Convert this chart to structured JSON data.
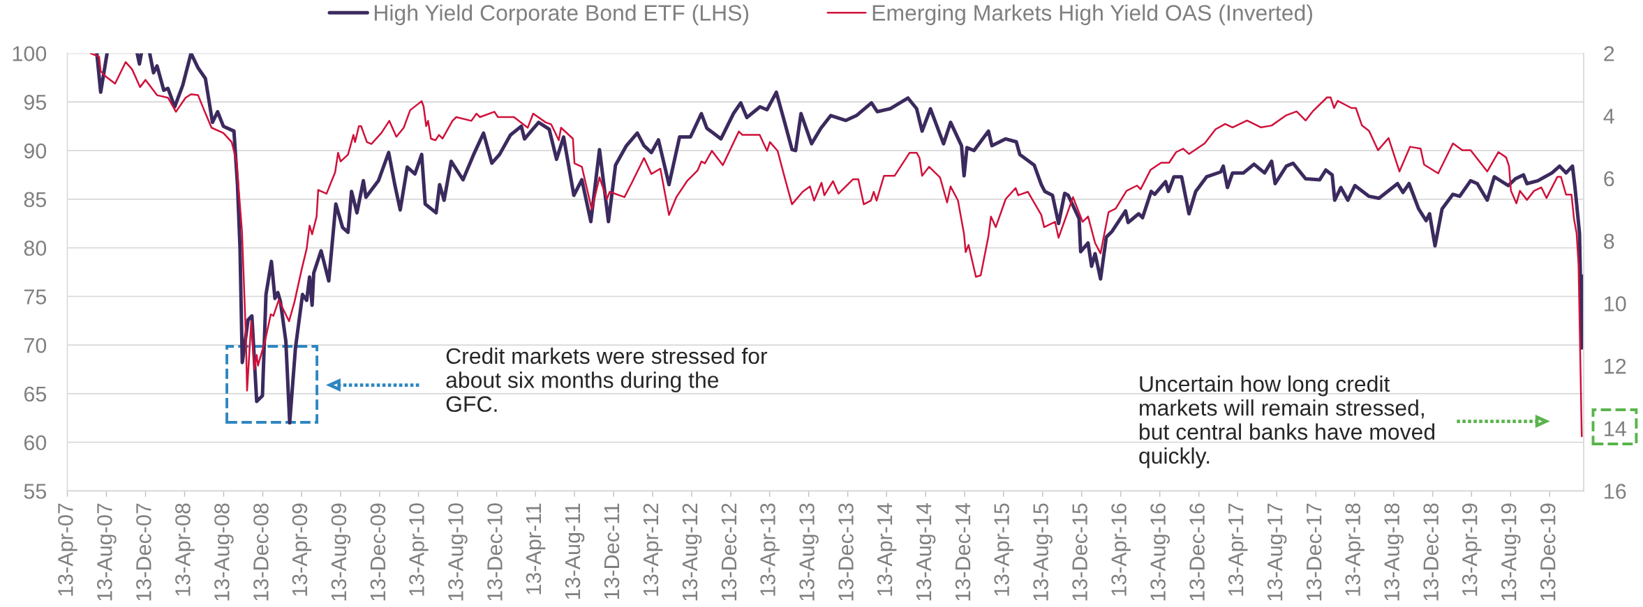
{
  "chart_data": {
    "type": "line",
    "legend": "top",
    "grid": "y",
    "xlim": [
      "2007-04-13",
      "2020-03-28"
    ],
    "xticks": [
      {
        "value": "2007-04-13",
        "label": "13-Apr-07"
      },
      {
        "value": "2007-08-13",
        "label": "13-Aug-07"
      },
      {
        "value": "2007-12-13",
        "label": "13-Dec-07"
      },
      {
        "value": "2008-04-13",
        "label": "13-Apr-08"
      },
      {
        "value": "2008-08-13",
        "label": "13-Aug-08"
      },
      {
        "value": "2008-12-13",
        "label": "13-Dec-08"
      },
      {
        "value": "2009-04-13",
        "label": "13-Apr-09"
      },
      {
        "value": "2009-08-13",
        "label": "13-Aug-09"
      },
      {
        "value": "2009-12-13",
        "label": "13-Dec-09"
      },
      {
        "value": "2010-04-13",
        "label": "13-Apr-10"
      },
      {
        "value": "2010-08-13",
        "label": "13-Aug-10"
      },
      {
        "value": "2010-12-13",
        "label": "13-Dec-10"
      },
      {
        "value": "2011-04-13",
        "label": "13-Apr-11"
      },
      {
        "value": "2011-08-13",
        "label": "13-Aug-11"
      },
      {
        "value": "2011-12-13",
        "label": "13-Dec-11"
      },
      {
        "value": "2012-04-13",
        "label": "13-Apr-12"
      },
      {
        "value": "2012-08-13",
        "label": "13-Aug-12"
      },
      {
        "value": "2012-12-13",
        "label": "13-Dec-12"
      },
      {
        "value": "2013-04-13",
        "label": "13-Apr-13"
      },
      {
        "value": "2013-08-13",
        "label": "13-Aug-13"
      },
      {
        "value": "2013-12-13",
        "label": "13-Dec-13"
      },
      {
        "value": "2014-04-13",
        "label": "13-Apr-14"
      },
      {
        "value": "2014-08-13",
        "label": "13-Aug-14"
      },
      {
        "value": "2014-12-13",
        "label": "13-Dec-14"
      },
      {
        "value": "2015-04-13",
        "label": "13-Apr-15"
      },
      {
        "value": "2015-08-13",
        "label": "13-Aug-15"
      },
      {
        "value": "2015-12-13",
        "label": "13-Dec-15"
      },
      {
        "value": "2016-04-13",
        "label": "13-Apr-16"
      },
      {
        "value": "2016-08-13",
        "label": "13-Aug-16"
      },
      {
        "value": "2016-12-13",
        "label": "13-Dec-16"
      },
      {
        "value": "2017-04-13",
        "label": "13-Apr-17"
      },
      {
        "value": "2017-08-13",
        "label": "13-Aug-17"
      },
      {
        "value": "2017-12-13",
        "label": "13-Dec-17"
      },
      {
        "value": "2018-04-13",
        "label": "13-Apr-18"
      },
      {
        "value": "2018-08-13",
        "label": "13-Aug-18"
      },
      {
        "value": "2018-12-13",
        "label": "13-Dec-18"
      },
      {
        "value": "2019-04-13",
        "label": "13-Apr-19"
      },
      {
        "value": "2019-08-13",
        "label": "13-Aug-19"
      },
      {
        "value": "2019-12-13",
        "label": "13-Dec-19"
      }
    ],
    "ylim": [
      55,
      100
    ],
    "yticks": [
      55,
      60,
      65,
      70,
      75,
      80,
      85,
      90,
      95,
      100
    ],
    "y2lim": [
      16,
      2
    ],
    "y2ticks": [
      2,
      4,
      6,
      8,
      10,
      12,
      14,
      16
    ],
    "series": [
      {
        "name": "High Yield Corporate Bond ETF (LHS)",
        "color": "#3b2a5e",
        "x": [
          "2007-07-14",
          "2007-07-26",
          "2007-08-15",
          "2007-10-01",
          "2007-11-17",
          "2007-11-24",
          "2007-11-30",
          "2007-12-10",
          "2007-12-26",
          "2008-01-07",
          "2008-01-18",
          "2008-02-08",
          "2008-02-21",
          "2008-03-13",
          "2008-04-07",
          "2008-05-03",
          "2008-05-25",
          "2008-06-17",
          "2008-07-09",
          "2008-07-25",
          "2008-08-12",
          "2008-09-14",
          "2008-09-25",
          "2008-10-03",
          "2008-10-10",
          "2008-10-28",
          "2008-11-09",
          "2008-11-24",
          "2008-12-12",
          "2008-12-23",
          "2009-01-09",
          "2009-01-20",
          "2009-01-29",
          "2009-02-06",
          "2009-02-23",
          "2009-03-07",
          "2009-03-25",
          "2009-04-16",
          "2009-04-29",
          "2009-05-08",
          "2009-05-16",
          "2009-05-21",
          "2009-06-13",
          "2009-07-07",
          "2009-07-29",
          "2009-08-19",
          "2009-09-05",
          "2009-09-16",
          "2009-10-03",
          "2009-10-23",
          "2009-10-31",
          "2009-12-09",
          "2010-01-10",
          "2010-01-29",
          "2010-02-15",
          "2010-03-09",
          "2010-04-02",
          "2010-04-23",
          "2010-05-04",
          "2010-06-07",
          "2010-06-18",
          "2010-07-02",
          "2010-07-24",
          "2010-08-30",
          "2010-10-05",
          "2010-11-02",
          "2010-11-28",
          "2010-12-22",
          "2011-01-25",
          "2011-02-28",
          "2011-03-10",
          "2011-04-23",
          "2011-05-26",
          "2011-06-18",
          "2011-07-10",
          "2011-08-11",
          "2011-09-05",
          "2011-10-03",
          "2011-10-30",
          "2011-11-27",
          "2011-12-19",
          "2012-01-22",
          "2012-02-25",
          "2012-03-17",
          "2012-04-09",
          "2012-05-01",
          "2012-06-03",
          "2012-07-06",
          "2012-08-09",
          "2012-09-12",
          "2012-09-29",
          "2012-11-12",
          "2012-12-21",
          "2013-01-13",
          "2013-02-01",
          "2013-03-14",
          "2013-04-05",
          "2013-05-04",
          "2013-05-30",
          "2013-06-22",
          "2013-07-03",
          "2013-07-20",
          "2013-08-22",
          "2013-09-20",
          "2013-10-21",
          "2013-12-07",
          "2014-01-09",
          "2014-02-25",
          "2014-03-15",
          "2014-04-24",
          "2014-06-19",
          "2014-07-16",
          "2014-08-02",
          "2014-08-28",
          "2014-10-08",
          "2014-10-30",
          "2014-12-03",
          "2014-12-11",
          "2014-12-20",
          "2015-01-11",
          "2015-02-25",
          "2015-03-08",
          "2015-04-20",
          "2015-05-23",
          "2015-06-03",
          "2015-07-18",
          "2015-08-09",
          "2015-08-20",
          "2015-09-13",
          "2015-10-02",
          "2015-10-21",
          "2015-11-01",
          "2015-12-05",
          "2015-12-10",
          "2016-01-02",
          "2016-01-13",
          "2016-01-24",
          "2016-02-10",
          "2016-02-28",
          "2016-03-17",
          "2016-04-28",
          "2016-05-06",
          "2016-06-08",
          "2016-06-20",
          "2016-07-17",
          "2016-07-28",
          "2016-08-31",
          "2016-09-09",
          "2016-09-26",
          "2016-10-20",
          "2016-11-12",
          "2016-12-03",
          "2017-01-06",
          "2017-02-19",
          "2017-02-27",
          "2017-03-12",
          "2017-03-28",
          "2017-05-01",
          "2017-06-03",
          "2017-07-06",
          "2017-07-28",
          "2017-08-08",
          "2017-09-12",
          "2017-10-03",
          "2017-11-11",
          "2017-12-25",
          "2018-01-13",
          "2018-02-02",
          "2018-02-10",
          "2018-03-01",
          "2018-03-23",
          "2018-04-14",
          "2018-05-28",
          "2018-06-28",
          "2018-08-25",
          "2018-09-11",
          "2018-09-30",
          "2018-10-30",
          "2018-11-22",
          "2018-12-03",
          "2018-12-20",
          "2019-01-11",
          "2019-02-14",
          "2019-03-07",
          "2019-04-10",
          "2019-05-01",
          "2019-06-01",
          "2019-06-23",
          "2019-08-06",
          "2019-08-28",
          "2019-09-22",
          "2019-10-03",
          "2019-11-06",
          "2019-12-20",
          "2020-01-13",
          "2020-02-02",
          "2020-02-22",
          "2020-03-01",
          "2020-03-15",
          "2020-03-22",
          "2020-03-27"
        ],
        "values": [
          100,
          96.0,
          100,
          null,
          100,
          98.9,
          100,
          null,
          100,
          98.0,
          98.7,
          96.2,
          96.4,
          94.5,
          96.7,
          100,
          98.5,
          97.4,
          92.9,
          94.0,
          92.5,
          92.0,
          86.5,
          79.9,
          68.2,
          72.6,
          73.0,
          64.2,
          64.8,
          75.2,
          78.6,
          74.8,
          75.4,
          74.5,
          70.4,
          62.0,
          69.7,
          75.2,
          74.6,
          77.0,
          74.1,
          77.4,
          79.7,
          76.6,
          84.5,
          82.1,
          81.6,
          85.8,
          83.6,
          86.9,
          85.2,
          86.9,
          89.8,
          86.5,
          83.9,
          88.3,
          87.6,
          89.6,
          84.5,
          83.6,
          86.5,
          84.9,
          88.9,
          87.0,
          89.8,
          91.8,
          88.7,
          89.6,
          91.6,
          92.5,
          91.2,
          92.9,
          92.2,
          89.1,
          91.4,
          85.4,
          87.0,
          82.7,
          90.1,
          82.7,
          88.5,
          90.5,
          91.8,
          90.5,
          89.8,
          91.1,
          86.5,
          91.4,
          91.4,
          93.8,
          92.3,
          91.2,
          93.8,
          94.9,
          93.4,
          94.5,
          94.2,
          96.0,
          92.9,
          90.1,
          90.0,
          93.8,
          90.7,
          92.3,
          93.6,
          93.1,
          93.6,
          94.9,
          94.0,
          94.3,
          95.4,
          94.3,
          92.0,
          94.3,
          90.7,
          92.9,
          90.5,
          87.4,
          90.3,
          90.0,
          92.0,
          90.5,
          91.2,
          90.9,
          89.6,
          88.5,
          86.5,
          85.8,
          85.4,
          82.5,
          85.6,
          85.4,
          83.0,
          79.6,
          80.5,
          78.1,
          79.4,
          76.8,
          81.1,
          81.7,
          83.8,
          82.6,
          83.5,
          83.1,
          85.8,
          85.5,
          86.8,
          85.8,
          87.3,
          87.3,
          83.5,
          85.8,
          87.3,
          87.8,
          88.4,
          86.2,
          87.7,
          87.7,
          88.6,
          87.7,
          88.9,
          86.6,
          88.4,
          88.7,
          87.1,
          87.0,
          88.0,
          87.5,
          84.9,
          86.2,
          84.9,
          86.4,
          85.3,
          85.1,
          86.6,
          85.7,
          86.6,
          84.0,
          82.8,
          83.5,
          80.2,
          84.0,
          85.5,
          85.3,
          86.9,
          86.6,
          84.9,
          87.3,
          86.4,
          87.1,
          87.5,
          86.6,
          86.9,
          87.7,
          88.4,
          87.7,
          88.4,
          86.2,
          81.5,
          69.7,
          77.1
        ]
      },
      {
        "name": "Emerging Markets High Yield OAS (Inverted)",
        "color": "#d0103a",
        "axis": "y2",
        "x": [
          "2007-06-25",
          "2007-07-21",
          "2007-07-26",
          "2007-08-11",
          "2007-09-09",
          "2007-10-12",
          "2007-11-01",
          "2007-11-26",
          "2007-12-13",
          "2008-01-18",
          "2008-02-21",
          "2008-03-17",
          "2008-04-16",
          "2008-05-03",
          "2008-05-25",
          "2008-06-13",
          "2008-07-06",
          "2008-08-12",
          "2008-09-07",
          "2008-09-22",
          "2008-10-09",
          "2008-10-21",
          "2008-10-25",
          "2008-11-07",
          "2008-11-17",
          "2008-11-24",
          "2008-11-28",
          "2008-12-20",
          "2009-01-07",
          "2009-01-15",
          "2009-02-01",
          "2009-03-05",
          "2009-03-22",
          "2009-04-13",
          "2009-04-29",
          "2009-05-08",
          "2009-05-16",
          "2009-05-30",
          "2009-06-04",
          "2009-06-30",
          "2009-07-27",
          "2009-08-05",
          "2009-08-13",
          "2009-09-05",
          "2009-09-22",
          "2009-09-27",
          "2009-10-09",
          "2009-10-16",
          "2009-11-03",
          "2009-11-17",
          "2009-12-18",
          "2010-01-12",
          "2010-02-03",
          "2010-02-26",
          "2010-03-18",
          "2010-04-23",
          "2010-04-29",
          "2010-05-07",
          "2010-05-13",
          "2010-05-22",
          "2010-06-05",
          "2010-06-16",
          "2010-06-27",
          "2010-07-28",
          "2010-08-09",
          "2010-09-25",
          "2010-10-11",
          "2010-10-22",
          "2010-12-06",
          "2010-12-17",
          "2011-02-05",
          "2011-03-20",
          "2011-04-06",
          "2011-05-15",
          "2011-06-01",
          "2011-06-25",
          "2011-07-02",
          "2011-08-08",
          "2011-08-13",
          "2011-09-05",
          "2011-10-06",
          "2011-10-30",
          "2011-11-22",
          "2011-12-01",
          "2012-01-16",
          "2012-02-08",
          "2012-03-17",
          "2012-04-09",
          "2012-05-07",
          "2012-06-03",
          "2012-06-26",
          "2012-07-29",
          "2012-08-31",
          "2012-09-12",
          "2012-09-23",
          "2012-10-15",
          "2012-11-18",
          "2013-01-07",
          "2013-01-18",
          "2013-03-13",
          "2013-04-05",
          "2013-04-14",
          "2013-05-08",
          "2013-05-30",
          "2013-06-22",
          "2013-07-25",
          "2013-08-17",
          "2013-08-30",
          "2013-09-22",
          "2013-10-01",
          "2013-10-28",
          "2013-11-14",
          "2013-12-29",
          "2014-01-15",
          "2014-02-01",
          "2014-02-23",
          "2014-03-04",
          "2014-03-13",
          "2014-04-05",
          "2014-05-08",
          "2014-06-24",
          "2014-07-16",
          "2014-07-25",
          "2014-08-02",
          "2014-08-24",
          "2014-09-27",
          "2014-10-19",
          "2014-10-30",
          "2014-11-22",
          "2014-12-11",
          "2014-12-16",
          "2014-12-25",
          "2015-01-17",
          "2015-02-01",
          "2015-02-25",
          "2015-03-05",
          "2015-03-20",
          "2015-04-20",
          "2015-05-21",
          "2015-05-29",
          "2015-06-28",
          "2015-08-09",
          "2015-08-18",
          "2015-09-21",
          "2015-10-02",
          "2015-11-16",
          "2015-12-16",
          "2016-01-02",
          "2016-01-24",
          "2016-02-10",
          "2016-03-06",
          "2016-03-28",
          "2016-05-01",
          "2016-06-03",
          "2016-06-14",
          "2016-07-15",
          "2016-08-17",
          "2016-09-11",
          "2016-10-03",
          "2016-10-25",
          "2016-11-12",
          "2016-12-31",
          "2017-02-03",
          "2017-03-05",
          "2017-03-28",
          "2017-05-12",
          "2017-06-25",
          "2017-07-28",
          "2017-09-12",
          "2017-10-14",
          "2017-11-11",
          "2017-12-03",
          "2018-01-17",
          "2018-01-28",
          "2018-02-08",
          "2018-02-19",
          "2018-04-03",
          "2018-04-17",
          "2018-05-06",
          "2018-05-28",
          "2018-06-25",
          "2018-07-28",
          "2018-08-31",
          "2018-10-03",
          "2018-11-05",
          "2018-11-16",
          "2018-12-30",
          "2019-02-14",
          "2019-03-15",
          "2019-04-10",
          "2019-06-01",
          "2019-07-06",
          "2019-07-30",
          "2019-08-08",
          "2019-08-14",
          "2019-08-31",
          "2019-09-11",
          "2019-10-03",
          "2019-10-25",
          "2019-11-17",
          "2019-12-03",
          "2020-01-06",
          "2020-01-17",
          "2020-02-02",
          "2020-02-19",
          "2020-02-27",
          "2020-03-06",
          "2020-03-12",
          "2020-03-22"
        ],
        "values": [
          2.0,
          2.11,
          2.57,
          2.74,
          2.97,
          2.28,
          2.51,
          3.08,
          2.85,
          3.34,
          3.42,
          3.87,
          3.42,
          3.31,
          3.34,
          3.82,
          4.38,
          4.55,
          4.84,
          5.46,
          7.68,
          10.97,
          12.79,
          10.57,
          12.11,
          11.65,
          11.99,
          11.2,
          10.35,
          10.4,
          9.89,
          10.57,
          9.95,
          8.93,
          8.25,
          7.51,
          7.79,
          7.22,
          6.37,
          6.49,
          5.8,
          5.18,
          5.46,
          5.24,
          4.61,
          4.84,
          4.33,
          4.33,
          4.84,
          4.9,
          4.55,
          4.16,
          4.67,
          4.38,
          3.82,
          3.53,
          3.7,
          4.33,
          4.16,
          4.73,
          4.78,
          4.61,
          4.73,
          4.16,
          4.04,
          4.16,
          3.93,
          4.04,
          3.87,
          4.04,
          4.04,
          4.38,
          3.93,
          4.21,
          4.27,
          4.78,
          4.38,
          4.73,
          5.52,
          5.63,
          7.0,
          5.97,
          6.66,
          6.43,
          6.6,
          6.14,
          5.35,
          5.86,
          5.69,
          7.17,
          6.6,
          6.09,
          5.75,
          5.46,
          5.52,
          5.12,
          5.58,
          4.5,
          4.61,
          4.61,
          5.12,
          4.84,
          5.12,
          5.97,
          6.83,
          6.43,
          6.26,
          6.71,
          6.14,
          6.54,
          6.09,
          6.49,
          6.03,
          6.03,
          6.83,
          6.71,
          6.43,
          6.71,
          5.92,
          5.92,
          5.18,
          5.18,
          5.35,
          5.92,
          5.63,
          5.97,
          6.77,
          6.26,
          6.71,
          7.79,
          8.36,
          8.13,
          9.15,
          9.1,
          7.85,
          7.22,
          7.56,
          6.66,
          6.31,
          6.54,
          6.43,
          7.17,
          7.56,
          7.39,
          7.9,
          6.6,
          7.39,
          7.22,
          8.07,
          8.4,
          7.08,
          6.97,
          6.4,
          6.23,
          6.35,
          5.73,
          5.5,
          5.5,
          5.16,
          5.05,
          5.22,
          4.88,
          4.43,
          4.26,
          4.37,
          4.15,
          4.37,
          4.31,
          3.98,
          3.86,
          4.15,
          3.86,
          3.41,
          3.41,
          3.75,
          3.52,
          3.75,
          3.75,
          4.31,
          4.48,
          5.1,
          4.71,
          5.78,
          4.99,
          5.05,
          5.56,
          5.84,
          4.88,
          5.1,
          5.1,
          5.78,
          5.16,
          5.33,
          5.61,
          6.4,
          6.8,
          6.4,
          6.69,
          6.4,
          6.29,
          6.63,
          5.95,
          5.95,
          6.52,
          6.52,
          7.31,
          7.76,
          8.77,
          14.25
        ]
      }
    ],
    "annotations": [
      "Credit markets were stressed for about six months during the GFC.",
      "Uncertain how long credit markets will remain stressed, but central banks have moved quickly."
    ]
  }
}
